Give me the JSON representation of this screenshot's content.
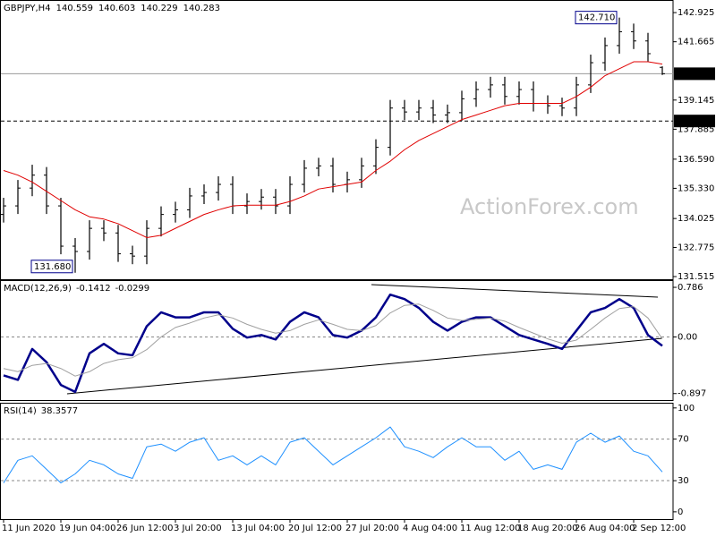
{
  "watermark": "ActionForex.com",
  "chart_data": [
    {
      "type": "ohlc",
      "title": "GBPJPY,H4",
      "color": "#000000",
      "open": [
        134.2,
        134.57,
        135.34,
        135.9,
        134.57,
        132.83,
        132.6,
        133.6,
        133.4,
        132.5,
        132.4,
        133.6,
        134.2,
        134.4,
        135.0,
        135.15,
        135.5,
        134.57,
        134.76,
        134.95,
        134.57,
        135.5,
        136.2,
        136.3,
        135.5,
        135.7,
        136.3,
        137.1,
        138.8,
        138.63,
        138.8,
        138.5,
        138.6,
        139.2,
        139.6,
        139.8,
        139.3,
        139.6,
        139.0,
        138.9,
        138.8,
        139.8,
        140.76,
        141.5,
        142.1,
        141.7,
        140.559
      ],
      "high": [
        134.92,
        135.69,
        136.35,
        136.25,
        134.92,
        133.18,
        133.95,
        133.95,
        133.75,
        132.85,
        133.95,
        134.55,
        134.75,
        135.35,
        135.5,
        135.85,
        135.85,
        135.11,
        135.3,
        135.3,
        135.85,
        136.55,
        136.65,
        136.65,
        136.05,
        136.65,
        137.45,
        139.15,
        139.15,
        139.15,
        139.15,
        138.95,
        139.55,
        139.95,
        140.15,
        140.15,
        139.95,
        139.95,
        139.35,
        139.25,
        140.15,
        141.11,
        141.85,
        142.71,
        142.45,
        142.05,
        140.603
      ],
      "low": [
        133.85,
        134.22,
        134.99,
        134.22,
        132.48,
        131.68,
        132.25,
        133.05,
        132.15,
        132.05,
        132.05,
        133.25,
        133.85,
        134.05,
        134.65,
        134.8,
        134.22,
        134.22,
        134.41,
        134.22,
        134.22,
        135.15,
        135.85,
        135.15,
        135.15,
        135.35,
        135.95,
        136.75,
        138.28,
        138.28,
        138.15,
        138.15,
        138.25,
        138.85,
        139.25,
        138.95,
        138.95,
        138.65,
        138.55,
        138.45,
        138.45,
        139.45,
        140.41,
        141.15,
        141.35,
        140.8,
        140.229
      ],
      "close": [
        134.57,
        135.34,
        135.9,
        134.57,
        132.83,
        132.6,
        133.6,
        133.4,
        132.5,
        132.4,
        133.6,
        134.2,
        134.4,
        135.0,
        135.15,
        135.5,
        134.57,
        134.76,
        134.95,
        134.57,
        135.5,
        136.2,
        136.3,
        135.5,
        135.7,
        136.3,
        137.1,
        138.8,
        138.63,
        138.8,
        138.5,
        138.6,
        139.2,
        139.6,
        139.8,
        139.3,
        139.6,
        139.0,
        138.9,
        138.8,
        139.8,
        140.76,
        141.5,
        142.1,
        141.7,
        141.15,
        140.283
      ],
      "lines": [
        {
          "color": "#e00000",
          "values": [
            136.1,
            135.9,
            135.6,
            135.2,
            134.8,
            134.4,
            134.1,
            134.0,
            133.8,
            133.5,
            133.2,
            133.3,
            133.6,
            133.9,
            134.2,
            134.4,
            134.57,
            134.6,
            134.6,
            134.6,
            134.76,
            135.0,
            135.3,
            135.4,
            135.5,
            135.6,
            136.1,
            136.5,
            137.0,
            137.4,
            137.7,
            138.0,
            138.3,
            138.5,
            138.7,
            138.9,
            139.0,
            139.0,
            139.0,
            139.0,
            139.3,
            139.7,
            140.2,
            140.5,
            140.8,
            140.8,
            140.7
          ]
        }
      ],
      "level_line": {
        "value": 138.24,
        "label": "138.240"
      },
      "annotations": [
        {
          "value": 142.71,
          "label": "142.710"
        },
        {
          "value": 131.68,
          "label": "131.680"
        }
      ],
      "ylim": [
        131.4,
        143.47
      ],
      "yticks": [
        142.925,
        141.665,
        139.145,
        137.885,
        {
          "value": 136.59,
          "label": "136.590"
        },
        {
          "value": 135.33,
          "label": "135.330"
        },
        134.025,
        132.775,
        131.515
      ]
    },
    {
      "type": "line",
      "title": "MACD(12,26,9)",
      "series": [
        {
          "color": "#00008b",
          "width": 2.5,
          "values": [
            -0.61,
            -0.68,
            -0.19,
            -0.4,
            -0.76,
            -0.87,
            -0.26,
            -0.11,
            -0.26,
            -0.29,
            0.17,
            0.39,
            0.31,
            0.31,
            0.39,
            0.39,
            0.13,
            -0.01,
            0.03,
            -0.04,
            0.24,
            0.39,
            0.31,
            0.03,
            -0.01,
            0.1,
            0.31,
            0.67,
            0.6,
            0.46,
            0.24,
            0.1,
            0.24,
            0.31,
            0.31,
            0.17,
            0.03,
            -0.04,
            -0.11,
            -0.19,
            0.1,
            0.39,
            0.46,
            0.6,
            0.46,
            0.03,
            -0.1412
          ]
        },
        {
          "color": "#a0a0a0",
          "width": 1,
          "values": [
            -0.5,
            -0.55,
            -0.45,
            -0.42,
            -0.5,
            -0.62,
            -0.55,
            -0.42,
            -0.36,
            -0.33,
            -0.2,
            0,
            0.15,
            0.22,
            0.3,
            0.35,
            0.3,
            0.2,
            0.12,
            0.06,
            0.1,
            0.2,
            0.27,
            0.2,
            0.12,
            0.1,
            0.18,
            0.38,
            0.5,
            0.52,
            0.42,
            0.3,
            0.26,
            0.28,
            0.3,
            0.25,
            0.15,
            0.06,
            -0.03,
            -0.1,
            -0.05,
            0.12,
            0.3,
            0.45,
            0.48,
            0.3,
            -0.0299
          ]
        }
      ],
      "ylim": [
        -1.0,
        0.9
      ],
      "yticks": [
        0.786,
        {
          "value": 0,
          "label": "0.00"
        },
        -0.897
      ],
      "grid": "dashed-inner"
    },
    {
      "type": "line",
      "title": "RSI(14)",
      "series": [
        {
          "color": "#1e90ff",
          "width": 1,
          "values": [
            27.8,
            49.6,
            53.9,
            40.9,
            27.8,
            36.5,
            49.6,
            45.2,
            36.5,
            32.2,
            62.6,
            65.2,
            58.3,
            67,
            71.3,
            49.6,
            53.9,
            45.2,
            53.9,
            45.2,
            67,
            71.3,
            58.3,
            45.2,
            53.9,
            62.6,
            71.3,
            81.7,
            62.6,
            58.3,
            52.2,
            62.6,
            71.3,
            62.6,
            62.6,
            49.6,
            58.3,
            40.9,
            45.2,
            40.9,
            67,
            75.7,
            67,
            73,
            58.3,
            53.9,
            38.3577
          ]
        }
      ],
      "ylim": [
        -7,
        105
      ],
      "yticks": [
        100,
        70,
        30,
        0
      ],
      "grid": "dashed-inner",
      "categories": [
        "11 Jun 2020",
        null,
        null,
        null,
        "19 Jun 04:00",
        null,
        null,
        null,
        "26 Jun 12:00",
        null,
        null,
        null,
        "3 Jul 20:00",
        null,
        null,
        null,
        "13 Jul 04:00",
        null,
        null,
        null,
        "20 Jul 12:00",
        null,
        null,
        null,
        "27 Jul 20:00",
        null,
        null,
        null,
        "4 Aug 04:00",
        null,
        null,
        null,
        "11 Aug 12:00",
        null,
        null,
        null,
        "18 Aug 20:00",
        null,
        null,
        null,
        "26 Aug 04:00",
        null,
        null,
        null,
        "2 Sep 12:00",
        null,
        null
      ]
    }
  ]
}
